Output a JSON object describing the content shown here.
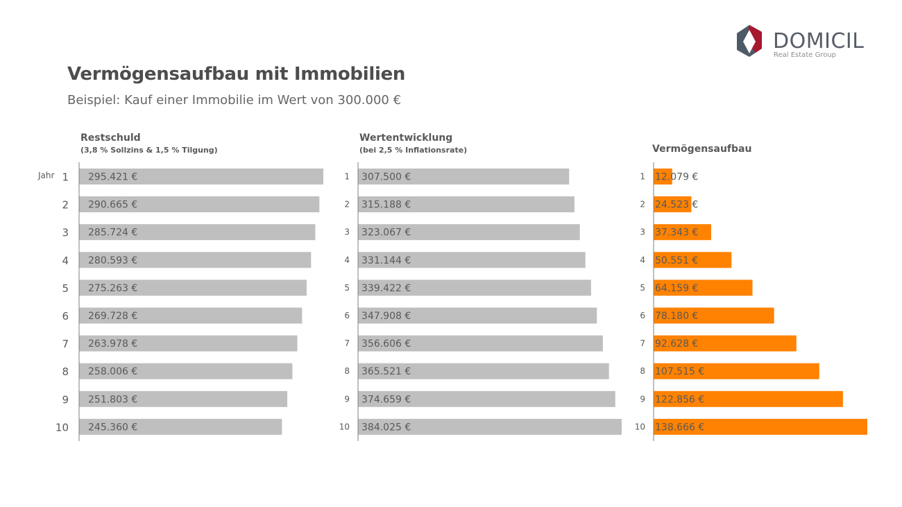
{
  "header": {
    "title": "Vermögensaufbau mit Immobilien",
    "subtitle": "Beispiel: Kauf einer Immobilie im Wert von 300.000 €"
  },
  "logo": {
    "word": "DOMICIL",
    "tagline": "Real Estate Group"
  },
  "year_axis_label": "Jahr",
  "colors": {
    "grey_bar": "#bfbfbf",
    "orange_bar": "#ff8200",
    "axis_line": "#7f7f7f",
    "label_text": "#595959",
    "logo_red": "#a6192e",
    "logo_dark": "#4e5a66"
  },
  "chart_data": [
    {
      "type": "bar",
      "title": "Restschuld",
      "subtitle": "(3,8 % Sollzins & 1,5 % Tilgung)",
      "categories": [
        "1",
        "2",
        "3",
        "4",
        "5",
        "6",
        "7",
        "8",
        "9",
        "10"
      ],
      "values": [
        295421,
        290665,
        285724,
        280593,
        275263,
        269728,
        263978,
        258006,
        251803,
        245360
      ],
      "labels": [
        "295.421 €",
        "290.665 €",
        "285.724 €",
        "280.593 €",
        "275.263 €",
        "269.728 €",
        "263.978 €",
        "258.006 €",
        "251.803 €",
        "245.360 €"
      ],
      "orientation": "horizontal"
    },
    {
      "type": "bar",
      "title": "Wertentwicklung",
      "subtitle": "(bei 2,5 % Inflationsrate)",
      "categories": [
        "1",
        "2",
        "3",
        "4",
        "5",
        "6",
        "7",
        "8",
        "9",
        "10"
      ],
      "values": [
        307500,
        315188,
        323067,
        331144,
        339422,
        347908,
        356606,
        365521,
        374659,
        384025
      ],
      "labels": [
        "307.500 €",
        "315.188 €",
        "323.067 €",
        "331.144 €",
        "339.422 €",
        "347.908 €",
        "356.606 €",
        "365.521 €",
        "374.659 €",
        "384.025 €"
      ],
      "orientation": "horizontal"
    },
    {
      "type": "bar",
      "title": "Vermögensaufbau",
      "subtitle": "",
      "categories": [
        "1",
        "2",
        "3",
        "4",
        "5",
        "6",
        "7",
        "8",
        "9",
        "10"
      ],
      "values": [
        12079,
        24523,
        37343,
        50551,
        64159,
        78180,
        92628,
        107515,
        122856,
        138666
      ],
      "labels": [
        "12.079 €",
        "24.523 €",
        "37.343 €",
        "50.551 €",
        "64.159 €",
        "78.180 €",
        "92.628 €",
        "107.515 €",
        "122.856 €",
        "138.666 €"
      ],
      "orientation": "horizontal"
    }
  ]
}
